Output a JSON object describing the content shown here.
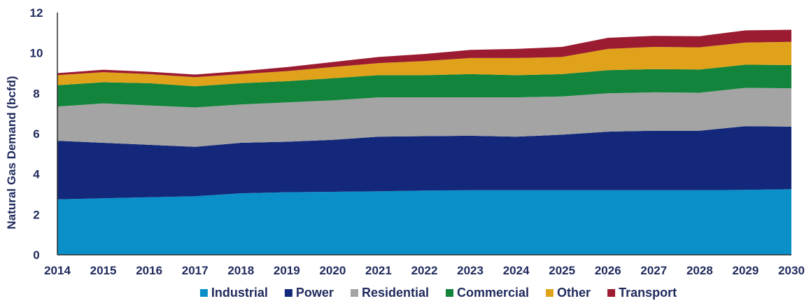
{
  "chart_data": {
    "type": "area",
    "stacked": true,
    "ylabel": "Natural Gas Demand (bcfd)",
    "xlabel": "",
    "ylim": [
      0,
      12
    ],
    "yticks": [
      "0",
      "2",
      "4",
      "6",
      "8",
      "10",
      "12"
    ],
    "x": [
      "2014",
      "2015",
      "2016",
      "2017",
      "2018",
      "2019",
      "2020",
      "2021",
      "2022",
      "2023",
      "2024",
      "2025",
      "2026",
      "2027",
      "2028",
      "2029",
      "2030"
    ],
    "grid": false,
    "legend_position": "bottom",
    "series": [
      {
        "name": "Industrial",
        "color": "#0b8fc9",
        "values": [
          2.75,
          2.8,
          2.85,
          2.9,
          3.05,
          3.1,
          3.12,
          3.15,
          3.18,
          3.2,
          3.2,
          3.2,
          3.2,
          3.2,
          3.2,
          3.22,
          3.25
        ]
      },
      {
        "name": "Power",
        "color": "#13287a",
        "values": [
          2.9,
          2.75,
          2.6,
          2.45,
          2.5,
          2.5,
          2.58,
          2.7,
          2.7,
          2.7,
          2.65,
          2.75,
          2.9,
          2.95,
          2.95,
          3.15,
          3.1
        ]
      },
      {
        "name": "Residential",
        "color": "#a4a4a4",
        "values": [
          1.7,
          1.95,
          1.95,
          1.95,
          1.9,
          1.95,
          1.95,
          1.95,
          1.92,
          1.9,
          1.95,
          1.9,
          1.9,
          1.9,
          1.88,
          1.9,
          1.9
        ]
      },
      {
        "name": "Commercial",
        "color": "#12843c",
        "values": [
          1.05,
          1.05,
          1.1,
          1.05,
          1.05,
          1.05,
          1.1,
          1.1,
          1.1,
          1.15,
          1.1,
          1.1,
          1.15,
          1.15,
          1.15,
          1.15,
          1.15
        ]
      },
      {
        "name": "Other",
        "color": "#e0a21a",
        "values": [
          0.5,
          0.5,
          0.45,
          0.45,
          0.45,
          0.5,
          0.55,
          0.6,
          0.7,
          0.8,
          0.85,
          0.85,
          1.05,
          1.1,
          1.1,
          1.1,
          1.15
        ]
      },
      {
        "name": "Transport",
        "color": "#9b1b30",
        "values": [
          0.1,
          0.12,
          0.12,
          0.13,
          0.15,
          0.2,
          0.25,
          0.3,
          0.35,
          0.4,
          0.45,
          0.5,
          0.55,
          0.55,
          0.55,
          0.6,
          0.6
        ]
      }
    ]
  }
}
